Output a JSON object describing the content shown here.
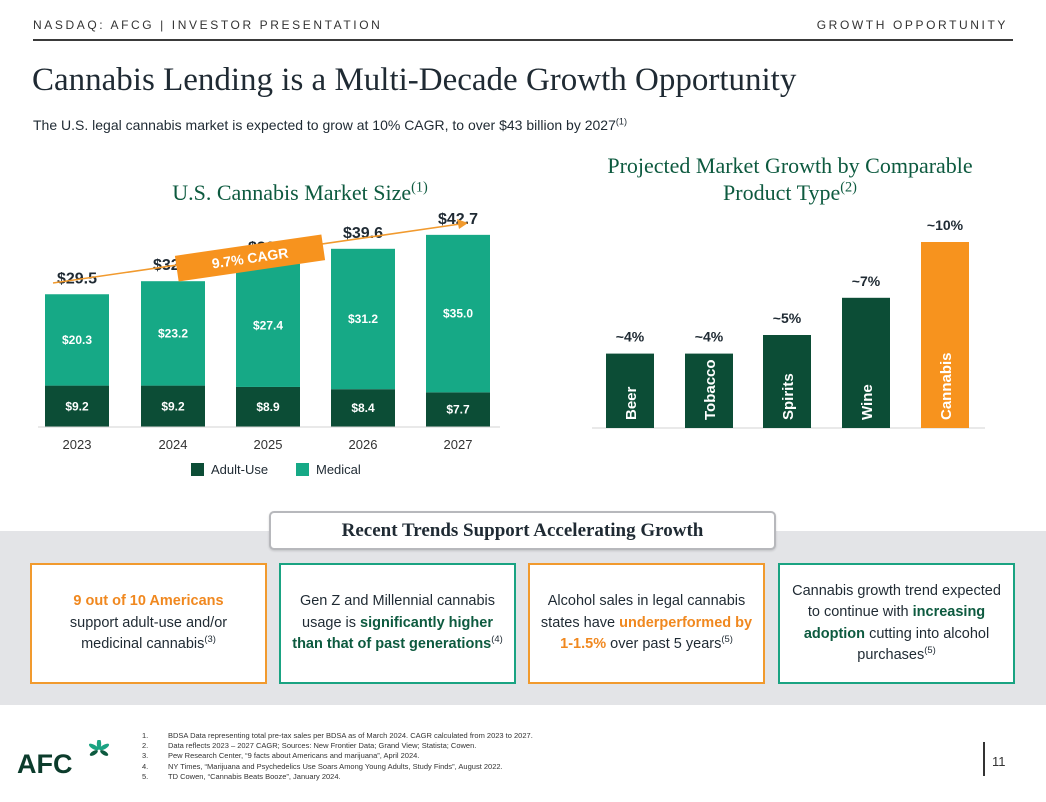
{
  "header": {
    "left": "NASDAQ: AFCG | INVESTOR PRESENTATION",
    "right": "GROWTH OPPORTUNITY"
  },
  "title": "Cannabis Lending is a Multi-Decade Growth Opportunity",
  "subtitle": {
    "text": "The U.S. legal cannabis market is expected to grow at 10% CAGR, to over $43 billion by 2027",
    "note": "(1)"
  },
  "chart_data": [
    {
      "type": "bar",
      "stacked": true,
      "title": "U.S. Cannabis Market Size",
      "title_note": "(1)",
      "categories": [
        "2023",
        "2024",
        "2025",
        "2026",
        "2027"
      ],
      "totals": [
        "$29.5",
        "$32.4",
        "$36.3",
        "$39.6",
        "$42.7"
      ],
      "series": [
        {
          "name": "Adult-Use",
          "color": "#0c4d36",
          "values": [
            9.2,
            9.2,
            8.9,
            8.4,
            7.7
          ],
          "labels": [
            "$9.2",
            "$9.2",
            "$8.9",
            "$8.4",
            "$7.7"
          ]
        },
        {
          "name": "Medical",
          "color": "#16a986",
          "values": [
            20.3,
            23.2,
            27.4,
            31.2,
            35.0
          ],
          "labels": [
            "$20.3",
            "$23.2",
            "$27.4",
            "$31.2",
            "$35.0"
          ]
        }
      ],
      "annotation": "9.7% CAGR",
      "legend": "bottom"
    },
    {
      "type": "bar",
      "title_line1": "Projected Market Growth by Comparable",
      "title_line2": "Product Type",
      "title_note": "(2)",
      "categories": [
        "Beer",
        "Tobacco",
        "Spirits",
        "Wine",
        "Cannabis"
      ],
      "values": [
        4,
        4,
        5,
        7,
        10
      ],
      "labels": [
        "~4%",
        "~4%",
        "~5%",
        "~7%",
        "~10%"
      ],
      "colors": [
        "#0c4d36",
        "#0c4d36",
        "#0c4d36",
        "#0c4d36",
        "#f7931e"
      ]
    }
  ],
  "trends": {
    "title": "Recent Trends Support Accelerating Growth",
    "cards": [
      {
        "hl": "9 out of 10 Americans",
        "text": "support adult-use and/or medicinal cannabis",
        "note": "(3)"
      },
      {
        "pre": "Gen Z and Millennial cannabis usage is",
        "hl": "significantly higher than that of past generations",
        "note": "(4)"
      },
      {
        "pre": "Alcohol sales in legal cannabis states have",
        "hl": "underperformed by 1-1.5%",
        "post": "over past 5 years",
        "note": "(5)"
      },
      {
        "pre": "Cannabis growth trend expected to continue with",
        "hl": "increasing adoption",
        "post": "cutting into alcohol purchases",
        "note": "(5)"
      }
    ]
  },
  "footnotes": [
    {
      "n": "1.",
      "text": "BDSA Data representing total pre-tax sales per BDSA as of March 2024. CAGR calculated from 2023 to 2027."
    },
    {
      "n": "2.",
      "text": "Data reflects 2023 – 2027 CAGR; Sources: New Frontier Data; Grand View; Statista; Cowen."
    },
    {
      "n": "3.",
      "text": "Pew Research Center, “9 facts about Americans and marijuana”, April 2024."
    },
    {
      "n": "4.",
      "text": "NY Times, “Marijuana and Psychedelics Use Soars Among Young Adults, Study Finds”, August 2022."
    },
    {
      "n": "5.",
      "text": "TD Cowen, “Cannabis Beats Booze”, January 2024."
    }
  ],
  "logo": "AFC",
  "page_number": "11"
}
